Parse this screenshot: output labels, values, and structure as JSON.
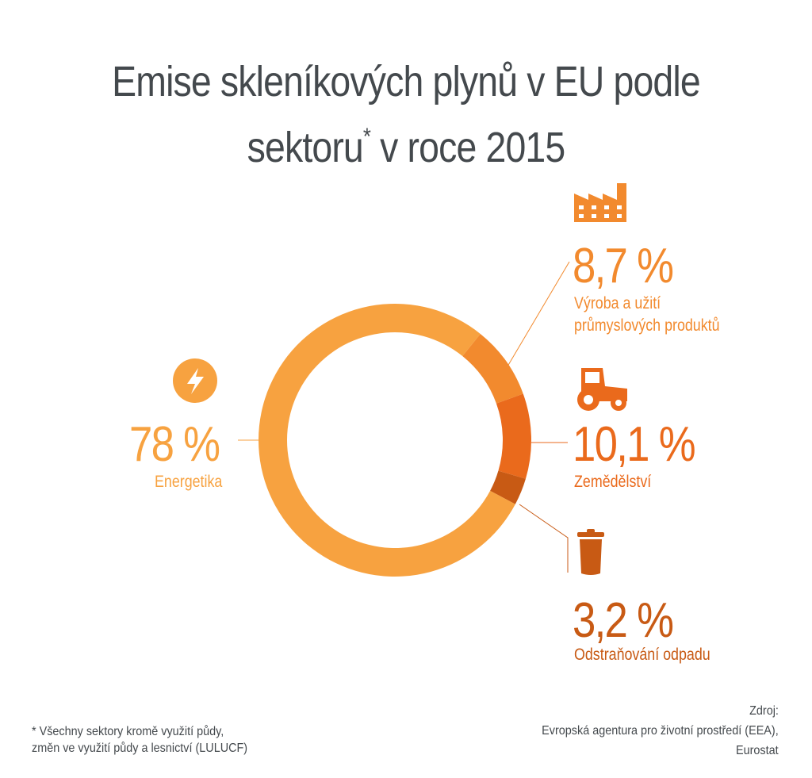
{
  "title_line1": "Emise skleníkových plynů v EU podle",
  "title_line2_a": "sektoru",
  "title_asterisk": "*",
  "title_line2_b": " v roce 2015",
  "chart_data": {
    "type": "pie",
    "subtype": "donut",
    "unit": "%",
    "slices": [
      {
        "label": "Výroba a užití průmyslových produktů",
        "value": 8.7,
        "display": "8,7 %",
        "color": "#f28a2e",
        "icon": "factory-icon"
      },
      {
        "label": "Zemědělství",
        "value": 10.1,
        "display": "10,1 %",
        "color": "#ea6a1c",
        "icon": "tractor-icon"
      },
      {
        "label": "Odstraňování odpadu",
        "value": 3.2,
        "display": "3,2 %",
        "color": "#c85a14",
        "icon": "trash-icon"
      },
      {
        "label": "Energetika",
        "value": 78,
        "display": "78 %",
        "color": "#f7a240",
        "icon": "lightning-icon"
      }
    ]
  },
  "labels": {
    "industry_line1": "Výroba a užití",
    "industry_line2": "průmyslových produktů"
  },
  "footnote_line1": "* Všechny sektory kromě využití půdy,",
  "footnote_line2": "změn ve využití půdy a lesnictví (LULUCF)",
  "source_line1": "Zdroj:",
  "source_line2": "Evropská agentura pro životní prostředí (EEA),",
  "source_line3": "Eurostat"
}
